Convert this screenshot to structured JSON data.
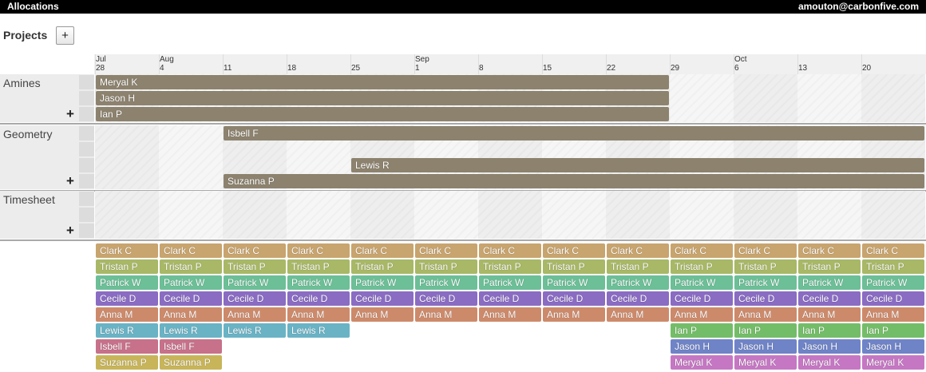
{
  "header": {
    "title": "Allocations",
    "user": "amouton@carbonfive.com"
  },
  "projects_heading": {
    "title": "Projects",
    "add_button": "+"
  },
  "timeline": [
    {
      "month": "Jul",
      "day": "28"
    },
    {
      "month": "Aug",
      "day": "4"
    },
    {
      "day": "11"
    },
    {
      "day": "18"
    },
    {
      "day": "25"
    },
    {
      "month": "Sep",
      "day": "1"
    },
    {
      "day": "8"
    },
    {
      "day": "15"
    },
    {
      "day": "22"
    },
    {
      "day": "29"
    },
    {
      "month": "Oct",
      "day": "6"
    },
    {
      "day": "13"
    },
    {
      "day": "20"
    }
  ],
  "projects": [
    {
      "name": "Amines",
      "add_button": "+",
      "rows": [
        {
          "person": "Meryal K",
          "start_week": 0,
          "end_week": 9
        },
        {
          "person": "Jason H",
          "start_week": 0,
          "end_week": 9
        },
        {
          "person": "Ian P",
          "start_week": 0,
          "end_week": 9
        }
      ]
    },
    {
      "name": "Geometry",
      "add_button": "+",
      "rows": [
        {
          "person": "Isbell F",
          "start_week": 2,
          "end_week": 13
        },
        null,
        {
          "person": "Lewis R",
          "start_week": 4,
          "end_week": 13
        },
        {
          "person": "Suzanna P",
          "start_week": 2,
          "end_week": 13
        }
      ]
    },
    {
      "name": "Timesheet",
      "add_button": "+",
      "rows": [
        null,
        null,
        null
      ]
    }
  ],
  "availability": [
    [
      "Clark C",
      "Tristan P",
      "Patrick W",
      "Cecile D",
      "Anna M",
      "Lewis R",
      "Isbell F",
      "Suzanna P"
    ],
    [
      "Clark C",
      "Tristan P",
      "Patrick W",
      "Cecile D",
      "Anna M",
      "Lewis R",
      "Isbell F",
      "Suzanna P"
    ],
    [
      "Clark C",
      "Tristan P",
      "Patrick W",
      "Cecile D",
      "Anna M",
      "Lewis R"
    ],
    [
      "Clark C",
      "Tristan P",
      "Patrick W",
      "Cecile D",
      "Anna M",
      "Lewis R"
    ],
    [
      "Clark C",
      "Tristan P",
      "Patrick W",
      "Cecile D",
      "Anna M"
    ],
    [
      "Clark C",
      "Tristan P",
      "Patrick W",
      "Cecile D",
      "Anna M"
    ],
    [
      "Clark C",
      "Tristan P",
      "Patrick W",
      "Cecile D",
      "Anna M"
    ],
    [
      "Clark C",
      "Tristan P",
      "Patrick W",
      "Cecile D",
      "Anna M"
    ],
    [
      "Clark C",
      "Tristan P",
      "Patrick W",
      "Cecile D",
      "Anna M"
    ],
    [
      "Clark C",
      "Tristan P",
      "Patrick W",
      "Cecile D",
      "Anna M",
      "Ian P",
      "Jason H",
      "Meryal K"
    ],
    [
      "Clark C",
      "Tristan P",
      "Patrick W",
      "Cecile D",
      "Anna M",
      "Ian P",
      "Jason H",
      "Meryal K"
    ],
    [
      "Clark C",
      "Tristan P",
      "Patrick W",
      "Cecile D",
      "Anna M",
      "Ian P",
      "Jason H",
      "Meryal K"
    ],
    [
      "Clark C",
      "Tristan P",
      "Patrick W",
      "Cecile D",
      "Anna M",
      "Ian P",
      "Jason H",
      "Meryal K"
    ]
  ],
  "colors": {
    "Clark C": "#c8a46e",
    "Tristan P": "#a8b866",
    "Patrick W": "#6cbf97",
    "Cecile D": "#8a6cc3",
    "Anna M": "#cd8a6b",
    "Lewis R": "#6ab3c5",
    "Isbell F": "#c7718a",
    "Suzanna P": "#c8b55a",
    "Ian P": "#74bd68",
    "Jason H": "#6f83c7",
    "Meryal K": "#c577c3"
  }
}
